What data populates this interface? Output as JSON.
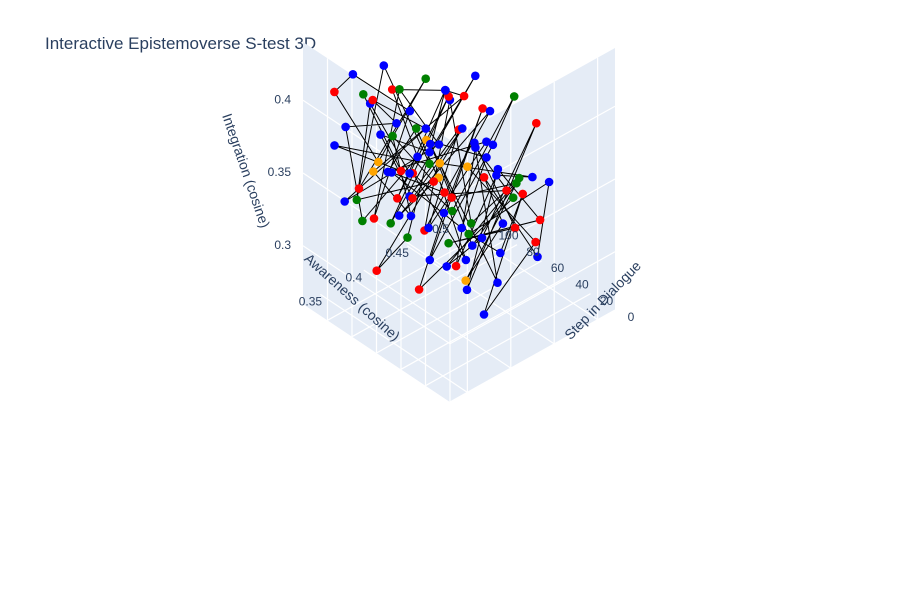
{
  "chart_data": {
    "type": "scatter3d",
    "title": "Interactive Epistemoverse S-test 3D",
    "axes": {
      "x": {
        "label": "Step in Dialogue",
        "range": [
          0,
          120
        ],
        "ticks": [
          0,
          20,
          40,
          60,
          80,
          100
        ]
      },
      "y": {
        "label": "Awareness (cosine)",
        "range": [
          0.33,
          0.52
        ],
        "ticks": [
          0.35,
          0.4,
          0.45,
          0.5
        ]
      },
      "z": {
        "label": "Integration (cosine)",
        "range": [
          0.26,
          0.44
        ],
        "ticks": [
          0.3,
          0.35,
          0.4
        ]
      }
    },
    "colors": {
      "red": "#ff0000",
      "blue": "#0000ff",
      "green": "#008000",
      "orange": "#ffa500",
      "line": "#000000",
      "pane": "#e5ecf6",
      "grid": "#ffffff"
    },
    "points": [
      {
        "step": 0,
        "awareness": 0.35,
        "integration": 0.415,
        "color": "orange"
      },
      {
        "step": 2,
        "awareness": 0.372,
        "integration": 0.305,
        "color": "blue"
      },
      {
        "step": 3,
        "awareness": 0.418,
        "integration": 0.372,
        "color": "red"
      },
      {
        "step": 5,
        "awareness": 0.395,
        "integration": 0.338,
        "color": "blue"
      },
      {
        "step": 6,
        "awareness": 0.36,
        "integration": 0.362,
        "color": "green"
      },
      {
        "step": 8,
        "awareness": 0.442,
        "integration": 0.318,
        "color": "blue"
      },
      {
        "step": 9,
        "awareness": 0.382,
        "integration": 0.392,
        "color": "red"
      },
      {
        "step": 10,
        "awareness": 0.405,
        "integration": 0.352,
        "color": "blue"
      },
      {
        "step": 12,
        "awareness": 0.365,
        "integration": 0.325,
        "color": "orange"
      },
      {
        "step": 13,
        "awareness": 0.428,
        "integration": 0.374,
        "color": "green"
      },
      {
        "step": 15,
        "awareness": 0.388,
        "integration": 0.345,
        "color": "blue"
      },
      {
        "step": 16,
        "awareness": 0.452,
        "integration": 0.402,
        "color": "red"
      },
      {
        "step": 18,
        "awareness": 0.375,
        "integration": 0.312,
        "color": "blue"
      },
      {
        "step": 19,
        "awareness": 0.412,
        "integration": 0.382,
        "color": "blue"
      },
      {
        "step": 21,
        "awareness": 0.358,
        "integration": 0.348,
        "color": "green"
      },
      {
        "step": 22,
        "awareness": 0.436,
        "integration": 0.332,
        "color": "red"
      },
      {
        "step": 24,
        "awareness": 0.392,
        "integration": 0.404,
        "color": "blue"
      },
      {
        "step": 25,
        "awareness": 0.42,
        "integration": 0.298,
        "color": "blue"
      },
      {
        "step": 27,
        "awareness": 0.37,
        "integration": 0.372,
        "color": "red"
      },
      {
        "step": 28,
        "awareness": 0.446,
        "integration": 0.356,
        "color": "green"
      },
      {
        "step": 30,
        "awareness": 0.398,
        "integration": 0.328,
        "color": "blue"
      },
      {
        "step": 31,
        "awareness": 0.362,
        "integration": 0.396,
        "color": "orange"
      },
      {
        "step": 33,
        "awareness": 0.43,
        "integration": 0.364,
        "color": "blue"
      },
      {
        "step": 34,
        "awareness": 0.385,
        "integration": 0.316,
        "color": "red"
      },
      {
        "step": 36,
        "awareness": 0.41,
        "integration": 0.388,
        "color": "blue"
      },
      {
        "step": 37,
        "awareness": 0.455,
        "integration": 0.338,
        "color": "green"
      },
      {
        "step": 39,
        "awareness": 0.378,
        "integration": 0.352,
        "color": "blue"
      },
      {
        "step": 40,
        "awareness": 0.424,
        "integration": 0.408,
        "color": "red"
      },
      {
        "step": 42,
        "awareness": 0.366,
        "integration": 0.322,
        "color": "blue"
      },
      {
        "step": 43,
        "awareness": 0.44,
        "integration": 0.376,
        "color": "blue"
      },
      {
        "step": 45,
        "awareness": 0.396,
        "integration": 0.344,
        "color": "green"
      },
      {
        "step": 46,
        "awareness": 0.352,
        "integration": 0.384,
        "color": "red"
      },
      {
        "step": 48,
        "awareness": 0.416,
        "integration": 0.302,
        "color": "blue"
      },
      {
        "step": 49,
        "awareness": 0.386,
        "integration": 0.368,
        "color": "orange"
      },
      {
        "step": 51,
        "awareness": 0.448,
        "integration": 0.392,
        "color": "blue"
      },
      {
        "step": 52,
        "awareness": 0.374,
        "integration": 0.334,
        "color": "red"
      },
      {
        "step": 54,
        "awareness": 0.406,
        "integration": 0.412,
        "color": "blue"
      },
      {
        "step": 55,
        "awareness": 0.432,
        "integration": 0.318,
        "color": "green"
      },
      {
        "step": 57,
        "awareness": 0.364,
        "integration": 0.358,
        "color": "blue"
      },
      {
        "step": 58,
        "awareness": 0.422,
        "integration": 0.384,
        "color": "red"
      },
      {
        "step": 60,
        "awareness": 0.39,
        "integration": 0.326,
        "color": "blue"
      },
      {
        "step": 61,
        "awareness": 0.458,
        "integration": 0.362,
        "color": "blue"
      },
      {
        "step": 63,
        "awareness": 0.38,
        "integration": 0.396,
        "color": "green"
      },
      {
        "step": 64,
        "awareness": 0.414,
        "integration": 0.34,
        "color": "red"
      },
      {
        "step": 66,
        "awareness": 0.356,
        "integration": 0.372,
        "color": "blue"
      },
      {
        "step": 67,
        "awareness": 0.438,
        "integration": 0.306,
        "color": "blue"
      },
      {
        "step": 69,
        "awareness": 0.4,
        "integration": 0.378,
        "color": "orange"
      },
      {
        "step": 70,
        "awareness": 0.368,
        "integration": 0.348,
        "color": "red"
      },
      {
        "step": 72,
        "awareness": 0.426,
        "integration": 0.402,
        "color": "blue"
      },
      {
        "step": 73,
        "awareness": 0.384,
        "integration": 0.314,
        "color": "green"
      },
      {
        "step": 75,
        "awareness": 0.45,
        "integration": 0.366,
        "color": "blue"
      },
      {
        "step": 76,
        "awareness": 0.394,
        "integration": 0.336,
        "color": "red"
      },
      {
        "step": 78,
        "awareness": 0.36,
        "integration": 0.39,
        "color": "blue"
      },
      {
        "step": 79,
        "awareness": 0.418,
        "integration": 0.358,
        "color": "blue"
      },
      {
        "step": 81,
        "awareness": 0.376,
        "integration": 0.322,
        "color": "green"
      },
      {
        "step": 82,
        "awareness": 0.444,
        "integration": 0.386,
        "color": "red"
      },
      {
        "step": 84,
        "awareness": 0.402,
        "integration": 0.346,
        "color": "blue"
      },
      {
        "step": 85,
        "awareness": 0.358,
        "integration": 0.408,
        "color": "blue"
      },
      {
        "step": 87,
        "awareness": 0.434,
        "integration": 0.328,
        "color": "red"
      },
      {
        "step": 88,
        "awareness": 0.388,
        "integration": 0.374,
        "color": "green"
      },
      {
        "step": 90,
        "awareness": 0.412,
        "integration": 0.31,
        "color": "blue"
      },
      {
        "step": 91,
        "awareness": 0.37,
        "integration": 0.354,
        "color": "orange"
      },
      {
        "step": 93,
        "awareness": 0.456,
        "integration": 0.38,
        "color": "blue"
      },
      {
        "step": 94,
        "awareness": 0.396,
        "integration": 0.4,
        "color": "red"
      },
      {
        "step": 96,
        "awareness": 0.428,
        "integration": 0.342,
        "color": "blue"
      },
      {
        "step": 97,
        "awareness": 0.366,
        "integration": 0.318,
        "color": "green"
      },
      {
        "step": 99,
        "awareness": 0.408,
        "integration": 0.37,
        "color": "blue"
      },
      {
        "step": 100,
        "awareness": 0.382,
        "integration": 0.394,
        "color": "red"
      },
      {
        "step": 102,
        "awareness": 0.446,
        "integration": 0.352,
        "color": "blue"
      },
      {
        "step": 103,
        "awareness": 0.354,
        "integration": 0.332,
        "color": "blue"
      },
      {
        "step": 105,
        "awareness": 0.42,
        "integration": 0.386,
        "color": "green"
      },
      {
        "step": 106,
        "awareness": 0.392,
        "integration": 0.306,
        "color": "red"
      },
      {
        "step": 108,
        "awareness": 0.436,
        "integration": 0.364,
        "color": "blue"
      },
      {
        "step": 109,
        "awareness": 0.372,
        "integration": 0.41,
        "color": "blue"
      },
      {
        "step": 111,
        "awareness": 0.404,
        "integration": 0.338,
        "color": "orange"
      },
      {
        "step": 112,
        "awareness": 0.46,
        "integration": 0.376,
        "color": "green"
      },
      {
        "step": 114,
        "awareness": 0.386,
        "integration": 0.324,
        "color": "red"
      },
      {
        "step": 115,
        "awareness": 0.416,
        "integration": 0.398,
        "color": "blue"
      },
      {
        "step": 117,
        "awareness": 0.362,
        "integration": 0.36,
        "color": "blue"
      },
      {
        "step": 118,
        "awareness": 0.44,
        "integration": 0.316,
        "color": "red"
      },
      {
        "step": 119,
        "awareness": 0.398,
        "integration": 0.382,
        "color": "green"
      },
      {
        "step": 1,
        "awareness": 0.43,
        "integration": 0.336,
        "color": "red"
      },
      {
        "step": 7,
        "awareness": 0.454,
        "integration": 0.366,
        "color": "blue"
      },
      {
        "step": 14,
        "awareness": 0.346,
        "integration": 0.34,
        "color": "blue"
      },
      {
        "step": 20,
        "awareness": 0.462,
        "integration": 0.33,
        "color": "red"
      },
      {
        "step": 26,
        "awareness": 0.344,
        "integration": 0.418,
        "color": "blue"
      },
      {
        "step": 32,
        "awareness": 0.47,
        "integration": 0.35,
        "color": "blue"
      },
      {
        "step": 38,
        "awareness": 0.348,
        "integration": 0.31,
        "color": "red"
      },
      {
        "step": 44,
        "awareness": 0.466,
        "integration": 0.4,
        "color": "green"
      },
      {
        "step": 50,
        "awareness": 0.342,
        "integration": 0.356,
        "color": "blue"
      },
      {
        "step": 56,
        "awareness": 0.474,
        "integration": 0.326,
        "color": "red"
      },
      {
        "step": 62,
        "awareness": 0.346,
        "integration": 0.378,
        "color": "blue"
      },
      {
        "step": 68,
        "awareness": 0.468,
        "integration": 0.344,
        "color": "blue"
      },
      {
        "step": 74,
        "awareness": 0.35,
        "integration": 0.302,
        "color": "red"
      },
      {
        "step": 80,
        "awareness": 0.472,
        "integration": 0.392,
        "color": "blue"
      },
      {
        "step": 86,
        "awareness": 0.344,
        "integration": 0.346,
        "color": "green"
      },
      {
        "step": 92,
        "awareness": 0.476,
        "integration": 0.37,
        "color": "red"
      },
      {
        "step": 98,
        "awareness": 0.348,
        "integration": 0.388,
        "color": "blue"
      },
      {
        "step": 104,
        "awareness": 0.464,
        "integration": 0.334,
        "color": "blue"
      },
      {
        "step": 110,
        "awareness": 0.352,
        "integration": 0.404,
        "color": "red"
      },
      {
        "step": 116,
        "awareness": 0.47,
        "integration": 0.312,
        "color": "green"
      }
    ],
    "line": {
      "connects": "points in dialogue step order",
      "color": "black"
    }
  }
}
